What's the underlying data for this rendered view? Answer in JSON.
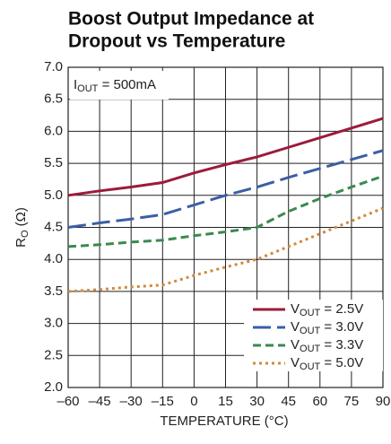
{
  "chart_data": {
    "type": "line",
    "title": [
      "Boost Output Impedance at",
      "Dropout vs Temperature"
    ],
    "annotation": "IOUT = 500mA",
    "xlabel": "TEMPERATURE (°C)",
    "ylabel": "RO (Ω)",
    "x": [
      -60,
      -45,
      -30,
      -15,
      0,
      15,
      30,
      45,
      60,
      75,
      90
    ],
    "series": [
      {
        "name": "VOUT = 2.5V",
        "color": "#9b1b3a",
        "style": "solid",
        "values": [
          5.0,
          5.07,
          5.13,
          5.2,
          5.35,
          5.48,
          5.6,
          5.75,
          5.9,
          6.05,
          6.2
        ]
      },
      {
        "name": "VOUT = 3.0V",
        "color": "#3a5fa6",
        "style": "long-dash",
        "values": [
          4.5,
          4.57,
          4.63,
          4.7,
          4.85,
          5.0,
          5.13,
          5.28,
          5.42,
          5.56,
          5.7
        ]
      },
      {
        "name": "VOUT = 3.3V",
        "color": "#3a8a4f",
        "style": "dash",
        "values": [
          4.2,
          4.23,
          4.27,
          4.3,
          4.37,
          4.43,
          4.5,
          4.75,
          4.95,
          5.13,
          5.3
        ]
      },
      {
        "name": "VOUT = 5.0V",
        "color": "#d08a3c",
        "style": "dot",
        "values": [
          3.5,
          3.53,
          3.57,
          3.6,
          3.75,
          3.88,
          4.0,
          4.2,
          4.4,
          4.6,
          4.8
        ]
      }
    ],
    "xlim": [
      -60,
      90
    ],
    "xticks": [
      {
        "value": -60,
        "label": "–60"
      },
      {
        "value": -45,
        "label": "–45"
      },
      {
        "value": -30,
        "label": "–30"
      },
      {
        "value": -15,
        "label": "–15"
      },
      0,
      15,
      30,
      45,
      60,
      75,
      90
    ],
    "ylim": [
      2,
      7
    ],
    "yticks": [
      {
        "value": 2,
        "label": "2.0"
      },
      2.5,
      {
        "value": 3,
        "label": "3.0"
      },
      3.5,
      {
        "value": 4,
        "label": "4.0"
      },
      4.5,
      {
        "value": 5,
        "label": "5.0"
      },
      5.5,
      {
        "value": 6,
        "label": "6.0"
      },
      6.5,
      {
        "value": 7,
        "label": "7.0"
      }
    ],
    "grid": true,
    "legend": "lower-right"
  }
}
